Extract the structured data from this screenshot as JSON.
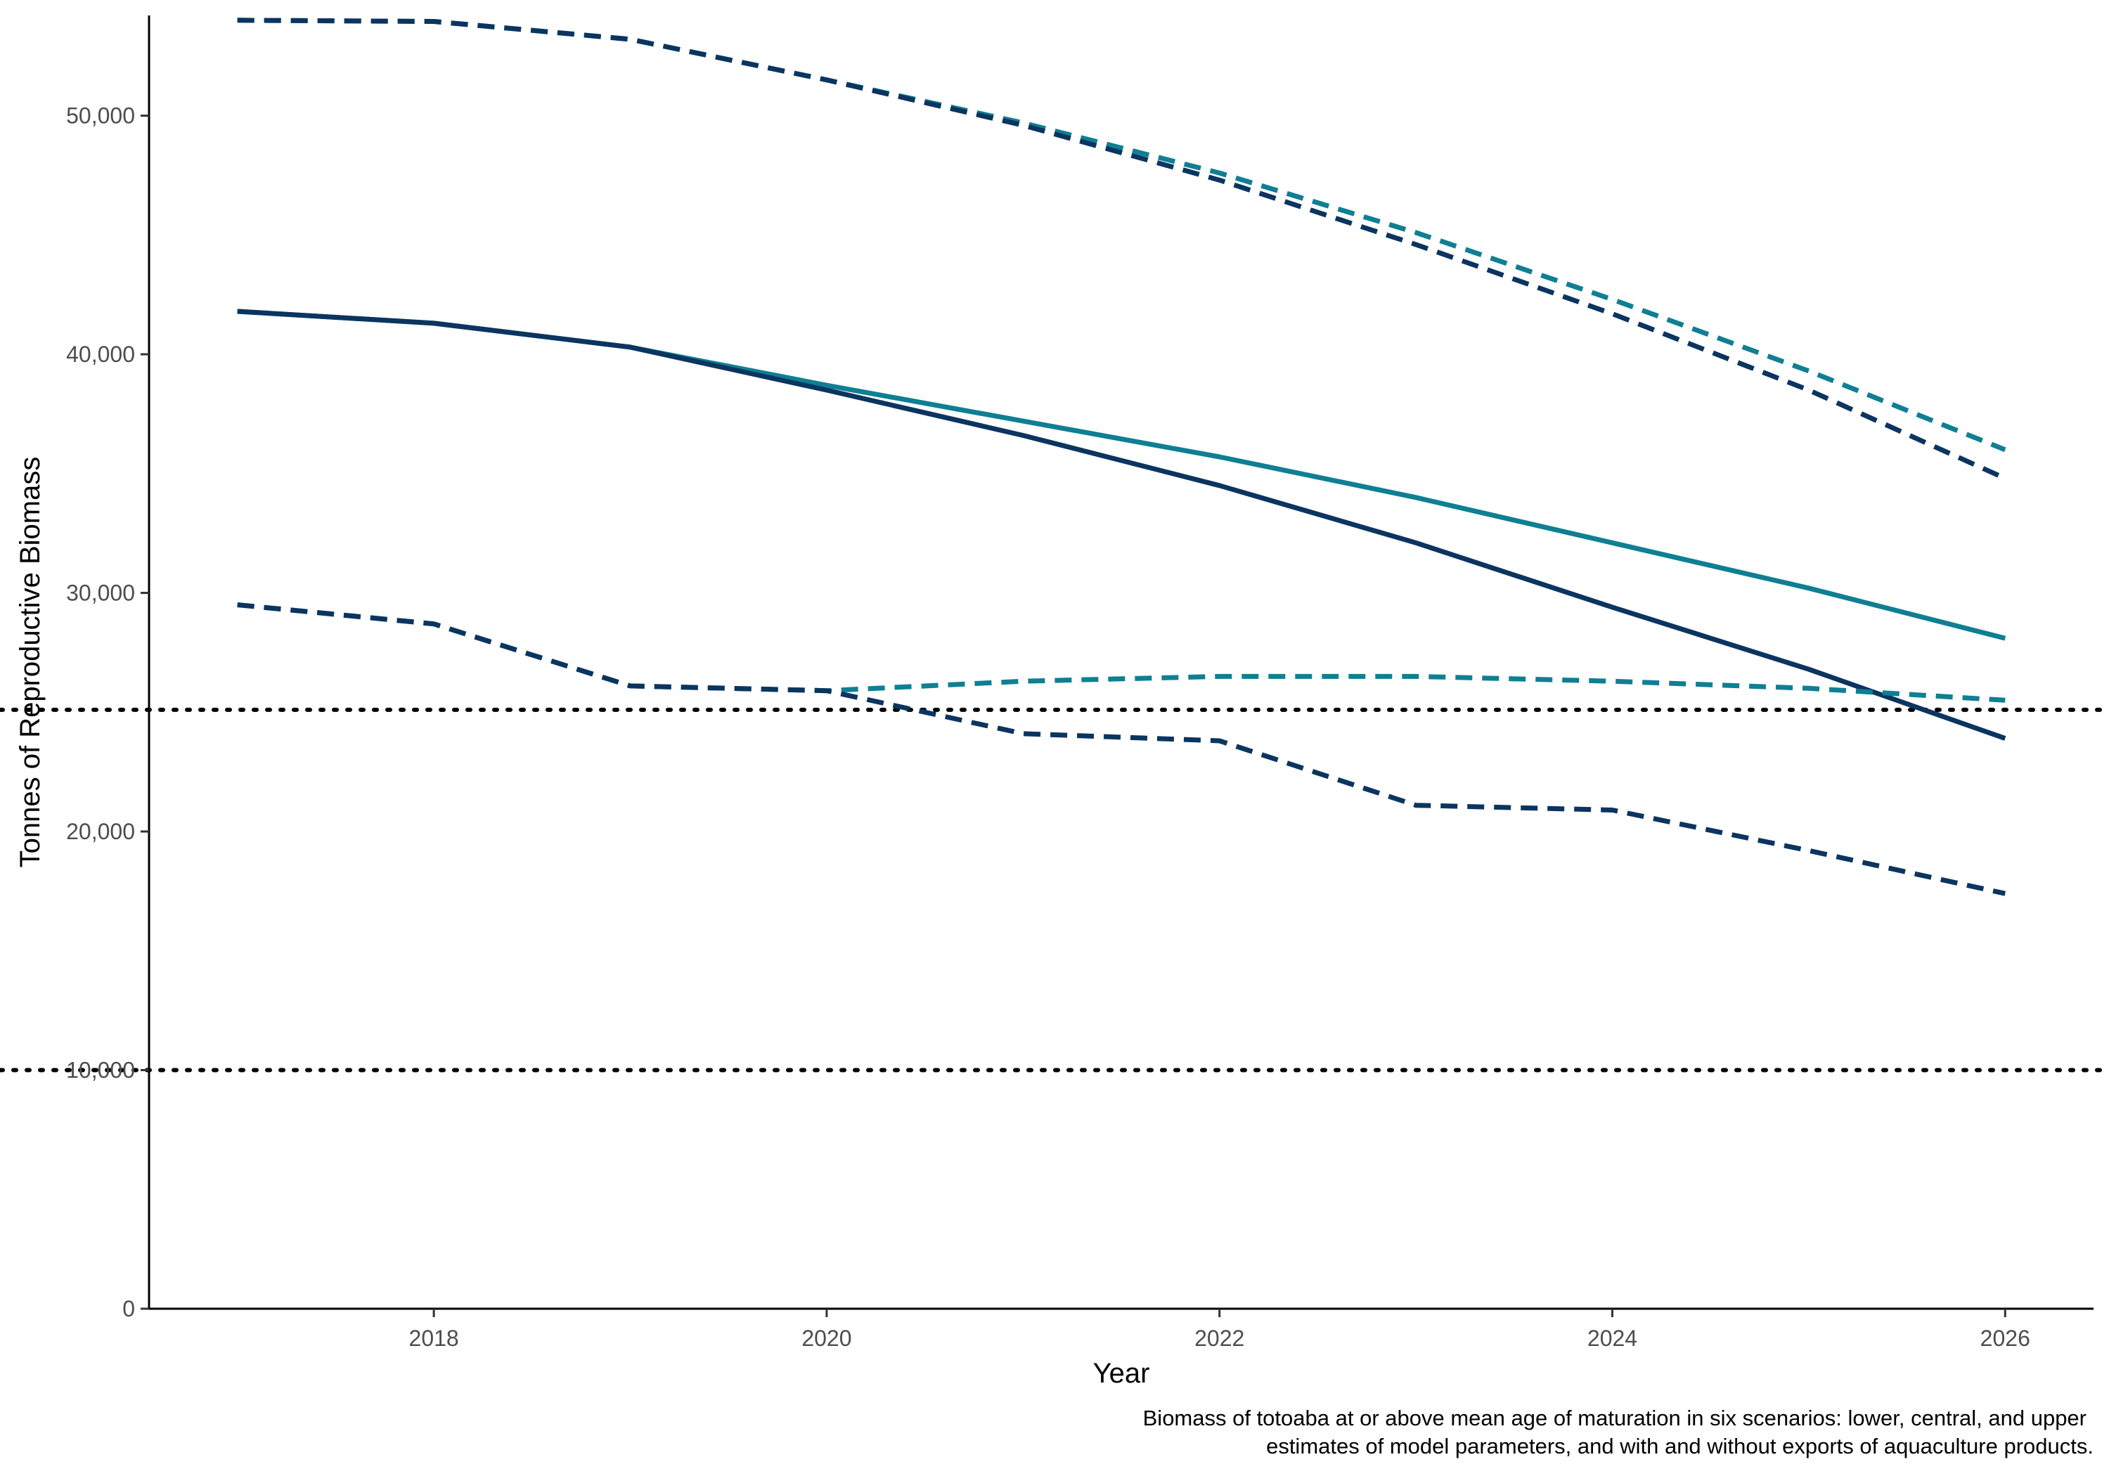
{
  "chart_data": {
    "type": "line",
    "title": "",
    "xlabel": "Year",
    "ylabel": "Tonnes of Reproductive Biomass",
    "caption": [
      "Biomass of totoaba at or above mean age of maturation in six scenarios: lower, central, and upper",
      "estimates of model parameters, and with and without exports of aquaculture products."
    ],
    "xlim": [
      2016.55,
      2026.45
    ],
    "ylim": [
      0,
      54200
    ],
    "x_ticks": [
      2018,
      2020,
      2022,
      2024,
      2026
    ],
    "x_tick_labels": [
      "2018",
      "2020",
      "2022",
      "2024",
      "2026"
    ],
    "y_ticks": [
      0,
      10000,
      20000,
      30000,
      40000,
      50000
    ],
    "y_tick_labels": [
      "0",
      "10,000",
      "20,000",
      "30,000",
      "40,000",
      "50,000"
    ],
    "grid": false,
    "legend": "none",
    "reference_lines": [
      {
        "y": 25100,
        "style": "dotted",
        "color": "#000000"
      },
      {
        "y": 10000,
        "style": "dotted",
        "color": "#000000"
      }
    ],
    "x": [
      2017,
      2018,
      2019,
      2020,
      2021,
      2022,
      2023,
      2024,
      2025,
      2026
    ],
    "series": [
      {
        "style": "dashed",
        "color": "#0f7f93",
        "values": [
          54000,
          53950,
          53200,
          51500,
          49700,
          47600,
          45100,
          42300,
          39300,
          36000
        ]
      },
      {
        "style": "dashed",
        "color": "#0b3560",
        "values": [
          54000,
          53950,
          53200,
          51500,
          49600,
          47300,
          44600,
          41700,
          38500,
          34800
        ]
      },
      {
        "style": "solid",
        "color": "#0f7f93",
        "values": [
          41800,
          41300,
          40300,
          38700,
          37200,
          35700,
          34000,
          32100,
          30200,
          28100
        ]
      },
      {
        "style": "solid",
        "color": "#0b3560",
        "values": [
          41800,
          41300,
          40300,
          38500,
          36600,
          34500,
          32100,
          29400,
          26800,
          23900
        ]
      },
      {
        "style": "dashed",
        "color": "#0f7f93",
        "values": [
          29500,
          28700,
          26100,
          25900,
          26300,
          26500,
          26500,
          26300,
          26000,
          25500
        ]
      },
      {
        "style": "dashed",
        "color": "#0b3560",
        "values": [
          29500,
          28700,
          26100,
          25900,
          24100,
          23800,
          21100,
          20900,
          19200,
          17400
        ]
      }
    ]
  }
}
